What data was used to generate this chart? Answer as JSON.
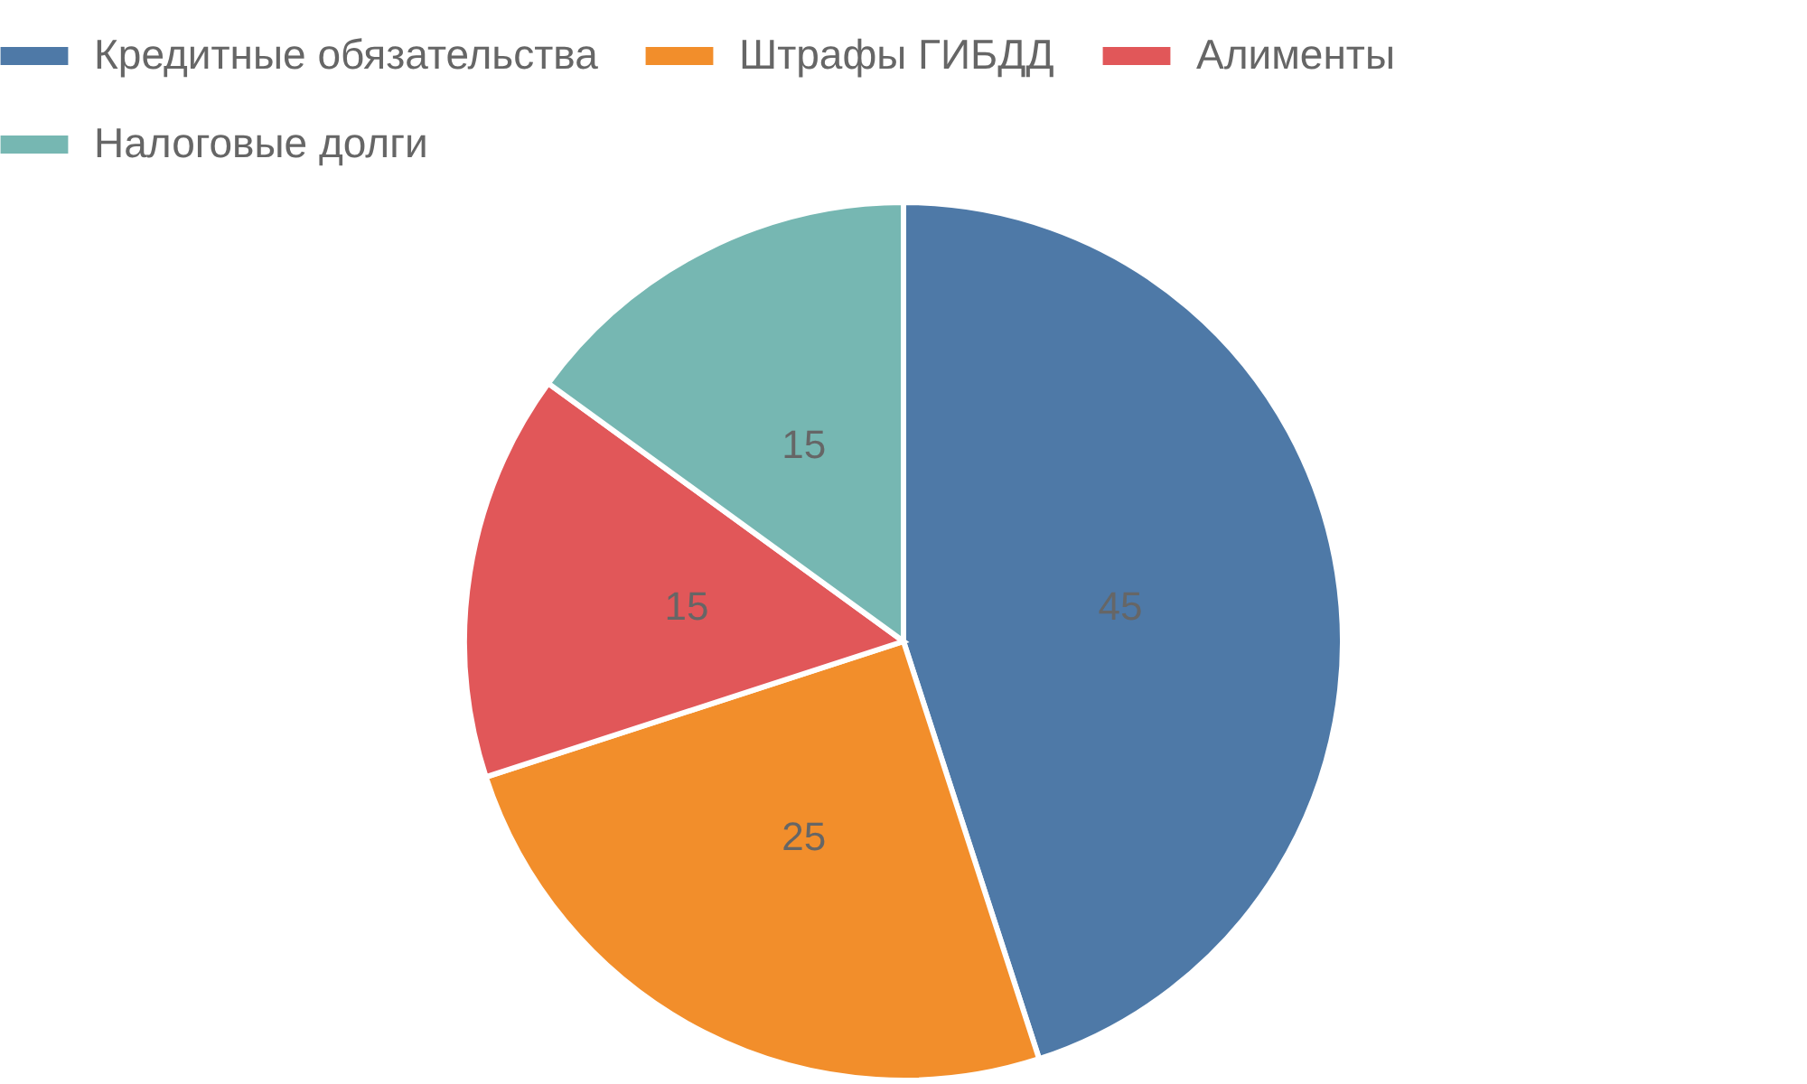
{
  "chart_data": {
    "type": "pie",
    "categories": [
      "Кредитные обязательства",
      "Штрафы ГИБДД",
      "Алименты",
      "Налоговые долги"
    ],
    "values": [
      45,
      25,
      15,
      15
    ],
    "colors": [
      "#4e79a7",
      "#f28e2b",
      "#e15759",
      "#76b7b2"
    ],
    "data_labels": true,
    "legend": "top"
  }
}
